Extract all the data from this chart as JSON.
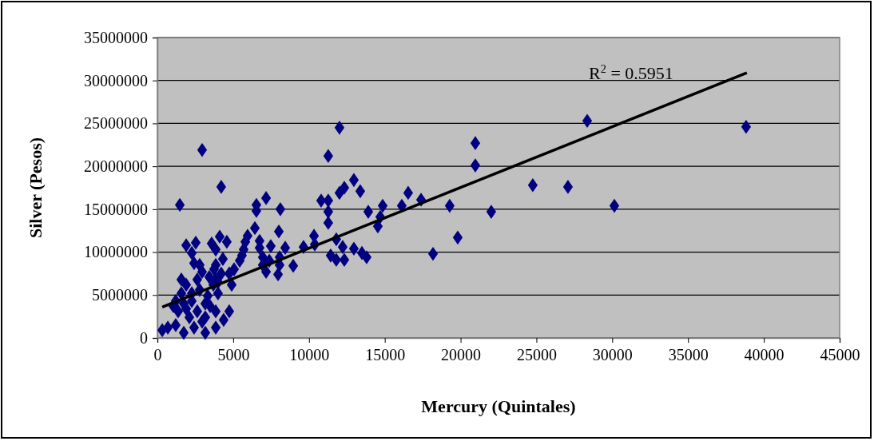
{
  "chart_data": {
    "type": "scatter",
    "xlabel": "Mercury (Quintales)",
    "ylabel": "Silver (Pesos)",
    "xlim": [
      0,
      45000
    ],
    "xticks": [
      0,
      5000,
      10000,
      15000,
      20000,
      25000,
      30000,
      35000,
      40000,
      45000
    ],
    "ylim": [
      0,
      35000000
    ],
    "yticks": [
      0,
      5000000,
      10000000,
      15000000,
      20000000,
      25000000,
      30000000,
      35000000
    ],
    "grid": "y",
    "marker": "diamond",
    "annotations": [
      "R$^{2}$ = 0.5951"
    ],
    "series": [
      {
        "color": "#000080",
        "x": [
          38830,
          28350,
          24760,
          27080,
          30140,
          12010,
          20970,
          11270,
          20970,
          12960,
          12330,
          12010,
          13380,
          16540,
          10800,
          11270,
          17390,
          11270,
          14860,
          16120,
          19280,
          13910,
          22020,
          14700,
          11270,
          14540,
          19810,
          10330,
          10380,
          11800,
          12220,
          12960,
          13490,
          13800,
          11430,
          11800,
          12330,
          18180,
          2950,
          4210,
          1480,
          7170,
          6530,
          6530,
          8110,
          6430,
          8010,
          5950,
          5800,
          6740,
          7480,
          8430,
          9640,
          6740,
          5690,
          5580,
          6950,
          7380,
          8060,
          8060,
          8960,
          7170,
          7960,
          6950,
          1900,
          2530,
          2270,
          3580,
          4110,
          4580,
          3850,
          4320,
          3850,
          2790,
          5430,
          5060,
          4900,
          4740,
          4210,
          4000,
          320,
          690,
          1210,
          1740,
          3160,
          2420,
          3850,
          4370,
          4740,
          3850,
          3160,
          1370,
          1050,
          1740,
          2270,
          1580,
          1900,
          2630,
          2950,
          2790,
          3320,
          3480,
          2630,
          2110,
          2950,
          3690,
          4000,
          2420,
          3850,
          1580,
          1210,
          1900,
          3420,
          3160,
          2270,
          3740
        ],
        "values": [
          24600000,
          25300000,
          17800000,
          17600000,
          15400000,
          24500000,
          22700000,
          21200000,
          20100000,
          18400000,
          17500000,
          16900000,
          17100000,
          16900000,
          16000000,
          16000000,
          16100000,
          14700000,
          15400000,
          15400000,
          15400000,
          14700000,
          14700000,
          14100000,
          13400000,
          13000000,
          11700000,
          11900000,
          10900000,
          11500000,
          10600000,
          10400000,
          9900000,
          9400000,
          9600000,
          9100000,
          9100000,
          9800000,
          21900000,
          17600000,
          15500000,
          16300000,
          15500000,
          14800000,
          15000000,
          12800000,
          12400000,
          11900000,
          11200000,
          11300000,
          10700000,
          10500000,
          10600000,
          10500000,
          10300000,
          9600000,
          9400000,
          9000000,
          9400000,
          8500000,
          8400000,
          7700000,
          7400000,
          8500000,
          10800000,
          11100000,
          9900000,
          11000000,
          11800000,
          11200000,
          10300000,
          9200000,
          8500000,
          8500000,
          9000000,
          8000000,
          6200000,
          7500000,
          7500000,
          6500000,
          900000,
          1200000,
          1500000,
          600000,
          600000,
          1200000,
          1200000,
          2100000,
          3100000,
          3100000,
          2400000,
          3100000,
          3700000,
          4000000,
          4300000,
          5200000,
          6200000,
          6800000,
          7700000,
          5600000,
          4900000,
          3700000,
          3100000,
          2400000,
          1900000,
          6200000,
          5200000,
          8700000,
          6800000,
          6800000,
          4300000,
          3400000,
          7100000,
          4000000,
          5200000,
          8000000
        ]
      },
      {
        "type": "line",
        "color": "#000000",
        "marker": "none",
        "line_style": "solid",
        "x": [
          320,
          38880
        ],
        "values": [
          3600000,
          30900000
        ]
      }
    ]
  }
}
